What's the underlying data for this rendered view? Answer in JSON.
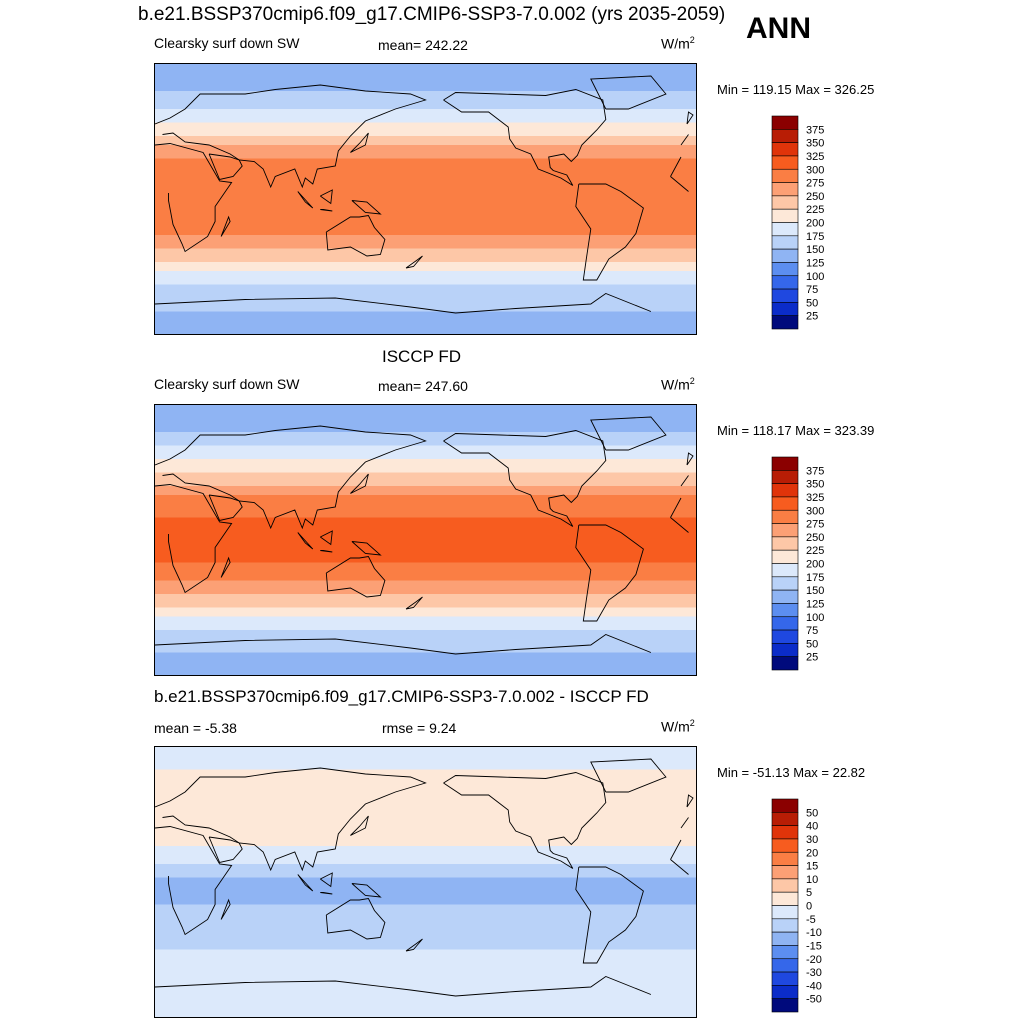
{
  "header": {
    "title": "b.e21.BSSP370cmip6.f09_g17.CMIP6-SSP3-7.0.002 (yrs 2035-2059)",
    "season": "ANN"
  },
  "panels": [
    {
      "title": "",
      "left_label": "Clearsky surf down SW",
      "center_label": "mean= 242.22",
      "unit": "W/m",
      "unit_sup": "2",
      "minmax": "Min = 119.15 Max = 326.25"
    },
    {
      "title": "ISCCP FD",
      "left_label": "Clearsky surf down SW",
      "center_label": "mean= 247.60",
      "unit": "W/m",
      "unit_sup": "2",
      "minmax": "Min = 118.17 Max = 323.39"
    },
    {
      "title": "b.e21.BSSP370cmip6.f09_g17.CMIP6-SSP3-7.0.002 - ISCCP FD",
      "left_label": "mean =  -5.38",
      "center_label": "rmse =   9.24",
      "unit": "W/m",
      "unit_sup": "2",
      "minmax": "Min = -51.13 Max =  22.82"
    }
  ],
  "chart_data": [
    {
      "type": "heatmap",
      "title": "Clearsky surf down SW",
      "mean": 242.22,
      "min": 119.15,
      "max": 326.25,
      "unit": "W/m2",
      "colorbar": {
        "levels": [
          375,
          350,
          325,
          300,
          275,
          250,
          225,
          200,
          175,
          150,
          125,
          100,
          75,
          50,
          25
        ],
        "colors": [
          "#8b0000",
          "#b81d05",
          "#e0340a",
          "#f75c1f",
          "#fa7e44",
          "#fca075",
          "#fdc7a7",
          "#fde8d8",
          "#dce9fb",
          "#b9d2f8",
          "#8fb4f3",
          "#5c8ef0",
          "#3567ea",
          "#1f48e0",
          "#0b2cc9",
          "#000a7c"
        ]
      },
      "zonal_profile": {
        "lat": [
          90,
          75,
          60,
          45,
          30,
          15,
          0,
          -15,
          -30,
          -45,
          -60,
          -75,
          -90
        ],
        "value": [
          125,
          140,
          175,
          215,
          270,
          290,
          295,
          290,
          260,
          210,
          170,
          150,
          140
        ]
      }
    },
    {
      "type": "heatmap",
      "title": "ISCCP FD",
      "mean": 247.6,
      "min": 118.17,
      "max": 323.39,
      "unit": "W/m2",
      "colorbar": {
        "levels": [
          375,
          350,
          325,
          300,
          275,
          250,
          225,
          200,
          175,
          150,
          125,
          100,
          75,
          50,
          25
        ],
        "colors": [
          "#8b0000",
          "#b81d05",
          "#e0340a",
          "#f75c1f",
          "#fa7e44",
          "#fca075",
          "#fdc7a7",
          "#fde8d8",
          "#dce9fb",
          "#b9d2f8",
          "#8fb4f3",
          "#5c8ef0",
          "#3567ea",
          "#1f48e0",
          "#0b2cc9",
          "#000a7c"
        ]
      },
      "zonal_profile": {
        "lat": [
          90,
          75,
          60,
          45,
          30,
          15,
          0,
          -15,
          -30,
          -45,
          -60,
          -75,
          -90
        ],
        "value": [
          130,
          145,
          180,
          220,
          275,
          300,
          310,
          300,
          270,
          220,
          175,
          150,
          140
        ]
      }
    },
    {
      "type": "heatmap",
      "title": "b.e21.BSSP370cmip6.f09_g17.CMIP6-SSP3-7.0.002 - ISCCP FD",
      "mean": -5.38,
      "rmse": 9.24,
      "min": -51.13,
      "max": 22.82,
      "unit": "W/m2",
      "colorbar": {
        "levels": [
          50,
          40,
          30,
          20,
          15,
          10,
          5,
          0,
          -5,
          -10,
          -15,
          -20,
          -30,
          -40,
          -50
        ],
        "colors": [
          "#8b0000",
          "#b81d05",
          "#e0340a",
          "#f75c1f",
          "#fa7e44",
          "#fca075",
          "#fdc7a7",
          "#fde8d8",
          "#dce9fb",
          "#b9d2f8",
          "#8fb4f3",
          "#5c8ef0",
          "#3567ea",
          "#1f48e0",
          "#0b2cc9",
          "#000a7c"
        ]
      },
      "zonal_profile": {
        "lat": [
          90,
          75,
          60,
          45,
          30,
          15,
          0,
          -15,
          -30,
          -45,
          -60,
          -75,
          -90
        ],
        "value": [
          -3,
          0,
          3,
          4,
          2,
          -3,
          -12,
          -10,
          -8,
          -5,
          -3,
          -4,
          -3
        ]
      }
    }
  ]
}
